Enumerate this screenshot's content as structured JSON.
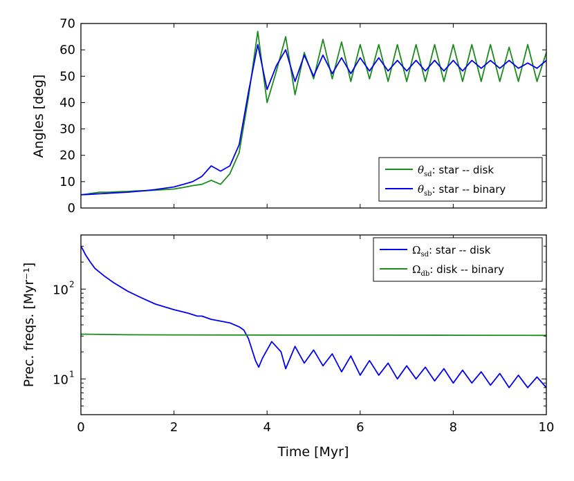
{
  "chart_data": [
    {
      "type": "line",
      "xlabel": "",
      "ylabel": "Angles [deg]",
      "xlim": [
        0,
        10
      ],
      "ylim": [
        0,
        70
      ],
      "y_ticks": [
        "0",
        "10",
        "20",
        "30",
        "40",
        "50",
        "60",
        "70"
      ],
      "legend_position": "lower-right",
      "series": [
        {
          "name": "θsd: star -- disk",
          "legend_symbol": "θ",
          "legend_sub": "sd",
          "legend_rest": ": star -- disk",
          "color": "#1a8a1a",
          "x": [
            0.0,
            0.2,
            0.4,
            0.6,
            0.8,
            1.0,
            1.2,
            1.4,
            1.6,
            1.8,
            2.0,
            2.2,
            2.4,
            2.6,
            2.8,
            3.0,
            3.2,
            3.4,
            3.6,
            3.8,
            4.0,
            4.2,
            4.4,
            4.6,
            4.8,
            5.0,
            5.2,
            5.4,
            5.6,
            5.8,
            6.0,
            6.2,
            6.4,
            6.6,
            6.8,
            7.0,
            7.2,
            7.4,
            7.6,
            7.8,
            8.0,
            8.2,
            8.4,
            8.6,
            8.8,
            9.0,
            9.2,
            9.4,
            9.6,
            9.8,
            10.0
          ],
          "y": [
            5,
            5.5,
            6,
            6,
            6.2,
            6.3,
            6.5,
            6.6,
            6.8,
            7,
            7.2,
            7.8,
            8.5,
            9,
            10.5,
            9,
            13,
            21,
            42,
            67,
            40,
            52,
            65,
            43,
            59,
            49,
            64,
            49,
            63,
            48,
            62,
            49,
            62,
            48,
            62,
            48,
            62,
            48,
            62,
            48,
            62,
            48,
            62,
            48,
            62,
            48,
            61,
            48,
            62,
            48,
            59
          ]
        },
        {
          "name": "θsb: star -- binary",
          "legend_symbol": "θ",
          "legend_sub": "sb",
          "legend_rest": ": star -- binary",
          "color": "#0000ee",
          "x": [
            0.0,
            0.2,
            0.4,
            0.6,
            0.8,
            1.0,
            1.2,
            1.4,
            1.6,
            1.8,
            2.0,
            2.2,
            2.4,
            2.6,
            2.8,
            3.0,
            3.2,
            3.4,
            3.6,
            3.8,
            4.0,
            4.2,
            4.4,
            4.6,
            4.8,
            5.0,
            5.2,
            5.4,
            5.6,
            5.8,
            6.0,
            6.2,
            6.4,
            6.6,
            6.8,
            7.0,
            7.2,
            7.4,
            7.6,
            7.8,
            8.0,
            8.2,
            8.4,
            8.6,
            8.8,
            9.0,
            9.2,
            9.4,
            9.6,
            9.8,
            10.0
          ],
          "y": [
            5,
            5.2,
            5.4,
            5.6,
            5.8,
            6,
            6.3,
            6.6,
            7,
            7.5,
            8,
            9,
            10,
            12,
            16,
            14,
            16,
            24,
            44,
            62,
            45,
            54,
            60,
            48,
            58,
            50,
            58,
            51,
            57,
            51,
            57,
            52,
            57,
            52,
            56,
            52,
            56,
            52,
            56,
            52,
            56,
            52,
            56,
            53,
            56,
            53,
            56,
            53,
            55,
            53,
            56
          ]
        }
      ]
    },
    {
      "type": "line",
      "xlabel": "Time [Myr]",
      "ylabel": "Prec. freqs. [Myr⁻¹]",
      "yscale": "log",
      "xlim": [
        0,
        10
      ],
      "ylim": [
        4,
        400
      ],
      "x_ticks": [
        "0",
        "2",
        "4",
        "6",
        "8",
        "10"
      ],
      "y_tick_labels": [
        {
          "value": 10,
          "base": "10",
          "exp": "1"
        },
        {
          "value": 100,
          "base": "10",
          "exp": "2"
        }
      ],
      "legend_position": "upper-right",
      "series": [
        {
          "name": "Ωsd: star -- disk",
          "legend_symbol": "Ω",
          "legend_sub": "sd",
          "legend_rest": ": star -- disk",
          "color": "#0000ee",
          "x": [
            0,
            0.05,
            0.1,
            0.2,
            0.3,
            0.5,
            0.7,
            1.0,
            1.3,
            1.6,
            2.0,
            2.3,
            2.5,
            2.6,
            2.8,
            3.0,
            3.2,
            3.4,
            3.5,
            3.6,
            3.75,
            3.82,
            3.9,
            4.1,
            4.3,
            4.4,
            4.6,
            4.8,
            5.0,
            5.2,
            5.4,
            5.6,
            5.8,
            6.0,
            6.2,
            6.4,
            6.6,
            6.8,
            7.0,
            7.2,
            7.4,
            7.6,
            7.8,
            8.0,
            8.2,
            8.4,
            8.6,
            8.8,
            9.0,
            9.2,
            9.4,
            9.6,
            9.8,
            10.0
          ],
          "y": [
            300,
            270,
            240,
            200,
            170,
            140,
            118,
            95,
            80,
            68,
            59,
            54,
            50,
            50,
            46,
            44,
            42,
            38,
            35,
            28,
            16,
            13.5,
            17,
            26,
            20,
            13,
            23,
            15,
            21,
            14,
            19,
            12,
            18,
            11,
            16,
            11,
            15,
            10,
            14,
            10,
            13.5,
            9.5,
            13,
            9,
            12.5,
            9,
            12,
            8.5,
            11.5,
            8,
            11,
            8,
            10.5,
            8
          ]
        },
        {
          "name": "Ωdb: disk -- binary",
          "legend_symbol": "Ω",
          "legend_sub": "db",
          "legend_rest": ": disk -- binary",
          "color": "#1a8a1a",
          "x": [
            0,
            1,
            2,
            4,
            6,
            8,
            10
          ],
          "y": [
            31.5,
            31.0,
            30.9,
            30.8,
            30.7,
            30.6,
            30.5
          ]
        }
      ]
    }
  ]
}
